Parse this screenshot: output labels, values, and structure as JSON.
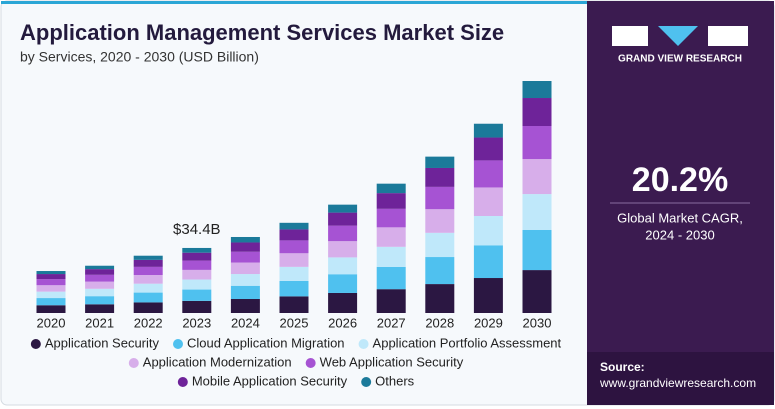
{
  "chart_data": {
    "type": "stacked_bar",
    "title": "Application Management Services Market Size",
    "subtitle": "by Services, 2020 - 2030 (USD Billion)",
    "annotation": "$34.4B",
    "categories": [
      "2020",
      "2021",
      "2022",
      "2023",
      "2024",
      "2025",
      "2026",
      "2027",
      "2028",
      "2029",
      "2030"
    ],
    "series": [
      {
        "name": "Application Security",
        "color": "#2b1742",
        "values": [
          4.1,
          4.6,
          5.6,
          6.4,
          7.4,
          8.8,
          10.6,
          12.6,
          15.3,
          18.5,
          22.7
        ]
      },
      {
        "name": "Cloud Application Migration",
        "color": "#4fc1ef",
        "values": [
          3.8,
          4.3,
          5.2,
          6.0,
          7.0,
          8.2,
          9.9,
          11.8,
          14.3,
          17.3,
          21.2
        ]
      },
      {
        "name": "Application Portfolio Assessment",
        "color": "#bfe8fa",
        "values": [
          3.4,
          3.9,
          4.7,
          5.3,
          6.2,
          7.4,
          8.9,
          10.6,
          12.8,
          15.5,
          19.0
        ]
      },
      {
        "name": "Application Modernization",
        "color": "#d7aeea",
        "values": [
          3.4,
          3.8,
          4.6,
          5.1,
          6.1,
          7.2,
          8.6,
          10.3,
          12.5,
          15.1,
          18.5
        ]
      },
      {
        "name": "Web Application Security",
        "color": "#a653d3",
        "values": [
          3.2,
          3.6,
          4.3,
          4.9,
          5.7,
          6.8,
          8.2,
          9.8,
          11.8,
          14.3,
          17.5
        ]
      },
      {
        "name": "Mobile Application Security",
        "color": "#6e2399",
        "values": [
          2.7,
          3.0,
          3.7,
          4.2,
          4.9,
          5.8,
          6.9,
          8.3,
          10.0,
          12.1,
          14.8
        ]
      },
      {
        "name": "Others",
        "color": "#1b7a9a",
        "values": [
          1.6,
          1.8,
          2.2,
          2.5,
          2.9,
          3.5,
          4.2,
          5.0,
          6.0,
          7.3,
          9.0
        ]
      }
    ]
  },
  "panel": {
    "brand": "GRAND VIEW RESEARCH",
    "cagr": "20.2%",
    "cagr_label_1": "Global Market CAGR,",
    "cagr_label_2": "2024 - 2030",
    "source_label": "Source:",
    "source_url": "www.grandviewresearch.com"
  }
}
